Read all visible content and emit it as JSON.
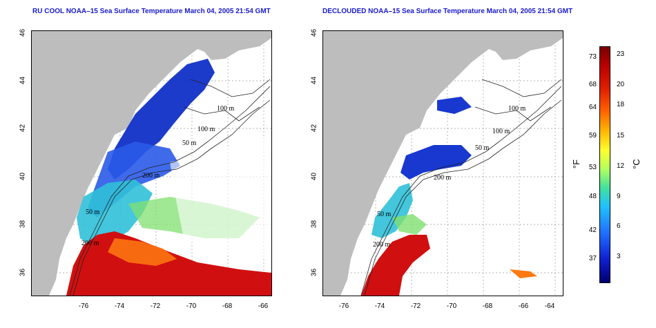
{
  "titles": {
    "left": "RU COOL NOAA–15 Sea Surface Temperature March 04, 2005 21:54 GMT",
    "right": "DECLOUDED NOAA–15 Sea Surface Temperature March 04, 2005 21:54 GMT"
  },
  "axes": {
    "x_ticks": [
      "-76",
      "-74",
      "-72",
      "-70",
      "-68",
      "-66",
      "-64"
    ],
    "y_ticks": [
      "46",
      "44",
      "42",
      "40",
      "38",
      "36"
    ]
  },
  "contour_labels": {
    "left": [
      "100 m",
      "100 m",
      "200 m",
      "50 m",
      "50 m",
      "200 m"
    ],
    "right": [
      "100 m",
      "100 m",
      "50 m",
      "200 m",
      "50 m",
      "200 m"
    ]
  },
  "colorbar": {
    "fahrenheit_ticks": [
      "73",
      "68",
      "64",
      "59",
      "53",
      "48",
      "42",
      "37"
    ],
    "celsius_ticks": [
      "23",
      "20",
      "18",
      "15",
      "12",
      "9",
      "6",
      "3"
    ],
    "unit_f": "°F",
    "unit_c": "°C"
  },
  "colors": {
    "land": "#bdbdbd",
    "title": "#1a1acc",
    "cold": "#1020c0",
    "warm": "#c00000"
  }
}
